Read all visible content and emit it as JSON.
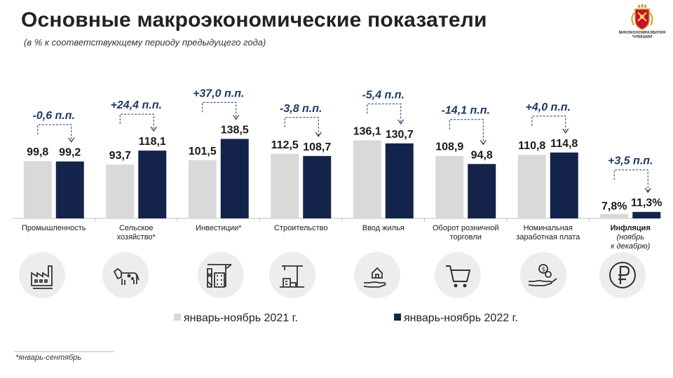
{
  "header": {
    "title": "Основные макроэкономические показатели",
    "subtitle": "(в % к соответствующему периоду предыдущего года)",
    "logo_text": "МИНЭКОНОМРАЗВИТИЯ ЧУВАШИИ"
  },
  "colors": {
    "series_2021": "#d9d9d9",
    "series_2022": "#14234a",
    "delta": "#1f3864",
    "axis": "#bfbfbf"
  },
  "chart_data": {
    "type": "bar",
    "categories": [
      "Промышленность",
      "Сельское хозяйство*",
      "Инвестиции*",
      "Строительство",
      "Ввод жилья",
      "Оборот розничной торговли",
      "Номинальная заработная плата",
      "Инфляция (ноябрь к декабрю)"
    ],
    "category_lines": [
      [
        "Промышленность"
      ],
      [
        "Сельское",
        "хозяйство*"
      ],
      [
        "Инвестиции*"
      ],
      [
        "Строительство"
      ],
      [
        "Ввод жилья"
      ],
      [
        "Оборот розничной",
        "торговли"
      ],
      [
        "Номинальная",
        "заработная плата"
      ],
      [
        "Инфляция",
        "(ноябрь",
        "к декабрю)"
      ]
    ],
    "series": [
      {
        "name": "январь-ноябрь 2021 г.",
        "values": [
          99.8,
          93.7,
          101.5,
          112.5,
          136.1,
          108.9,
          110.8,
          7.8
        ]
      },
      {
        "name": "январь-ноябрь 2022 г.",
        "values": [
          99.2,
          118.1,
          138.5,
          108.7,
          130.7,
          94.8,
          114.8,
          11.3
        ]
      }
    ],
    "value_labels_2021": [
      "99,8",
      "93,7",
      "101,5",
      "112,5",
      "136,1",
      "108,9",
      "110,8",
      "7,8%"
    ],
    "value_labels_2022": [
      "99,2",
      "118,1",
      "138,5",
      "108,7",
      "130,7",
      "94,8",
      "114,8",
      "11,3%"
    ],
    "delta_labels": [
      "-0,6 п.п.",
      "+24,4 п.п.",
      "+37,0 п.п.",
      "-3,8 п.п.",
      "-5,4 п.п.",
      "-14,1 п.п.",
      "+4,0 п.п.",
      "+3,5 п.п."
    ],
    "ylim": [
      0,
      150
    ],
    "legend_position": "bottom",
    "grid": false
  },
  "icons": [
    "factory-icon",
    "cow-icon",
    "construction-buildings-icon",
    "crane-building-icon",
    "house-in-hand-icon",
    "shopping-cart-icon",
    "money-hand-icon",
    "ruble-icon"
  ],
  "footnote": "*январь-сентябрь"
}
